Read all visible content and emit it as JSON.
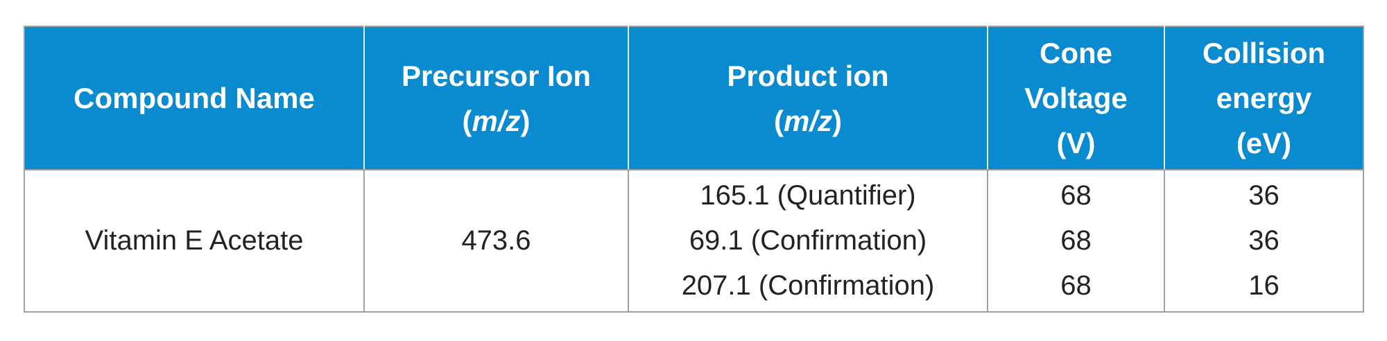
{
  "colors": {
    "header_bg": "#0a8bd0",
    "header_text": "#ffffff",
    "border": "#a0a0a0",
    "body_text": "#222222"
  },
  "headers": {
    "compound": "Compound Name",
    "precursor": {
      "line1": "Precursor Ion",
      "open": "(",
      "unit": "m/z",
      "close": ")"
    },
    "product": {
      "line1": "Product ion",
      "open": "(",
      "unit": "m/z",
      "close": ")"
    },
    "cone": [
      "Cone",
      "Voltage",
      "(V)"
    ],
    "collision": [
      "Collision",
      "energy",
      "(eV)"
    ]
  },
  "rows": [
    {
      "compound": "Vitamin E Acetate",
      "precursor": "473.6",
      "products": [
        "165.1 (Quantifier)",
        "69.1 (Confirmation)",
        "207.1 (Confirmation)"
      ],
      "cone": [
        "68",
        "68",
        "68"
      ],
      "collision": [
        "36",
        "36",
        "16"
      ]
    }
  ]
}
